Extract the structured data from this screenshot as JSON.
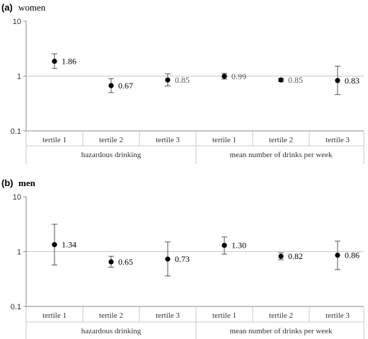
{
  "chart_data": [
    {
      "type": "scatter",
      "panel_label": "(a)",
      "panel_title": "women",
      "y_scale": "log",
      "ylim": [
        0.1,
        10
      ],
      "y_ticks": [
        "10",
        "1",
        "0.1"
      ],
      "reference_line": 1,
      "categories": [
        "tertile 1",
        "tertile 2",
        "tertile 3",
        "tertile 1",
        "tertile 2",
        "tertile 3"
      ],
      "groups": [
        {
          "label": "hazardous drinking",
          "span": [
            0,
            2
          ]
        },
        {
          "label": "mean number of drinks per week",
          "span": [
            3,
            5
          ]
        }
      ],
      "values": [
        1.86,
        0.67,
        0.85,
        0.99,
        0.85,
        0.83
      ],
      "value_labels": [
        "1.86",
        "0.67",
        "0.85",
        "0.99",
        "0.85",
        "0.83"
      ],
      "ci_lower": [
        1.38,
        0.5,
        0.66,
        0.88,
        0.79,
        0.46
      ],
      "ci_upper": [
        2.55,
        0.9,
        1.1,
        1.12,
        0.91,
        1.52
      ]
    },
    {
      "type": "scatter",
      "panel_label": "(b)",
      "panel_title": "men",
      "y_scale": "log",
      "ylim": [
        0.1,
        10
      ],
      "y_ticks": [
        "10",
        "1",
        "0.1"
      ],
      "reference_line": 1,
      "categories": [
        "tertile 1",
        "tertile 2",
        "tertile 3",
        "tertile 1",
        "tertile 2",
        "tertile 3"
      ],
      "groups": [
        {
          "label": "hazardous drinking",
          "span": [
            0,
            2
          ]
        },
        {
          "label": "mean number of drinks per week",
          "span": [
            3,
            5
          ]
        }
      ],
      "values": [
        1.34,
        0.65,
        0.73,
        1.3,
        0.82,
        0.86
      ],
      "value_labels": [
        "1.34",
        "0.65",
        "0.73",
        "1.30",
        "0.82",
        "0.86"
      ],
      "ci_lower": [
        0.57,
        0.52,
        0.36,
        0.9,
        0.71,
        0.47
      ],
      "ci_upper": [
        3.15,
        0.82,
        1.5,
        1.85,
        0.95,
        1.55
      ]
    }
  ]
}
